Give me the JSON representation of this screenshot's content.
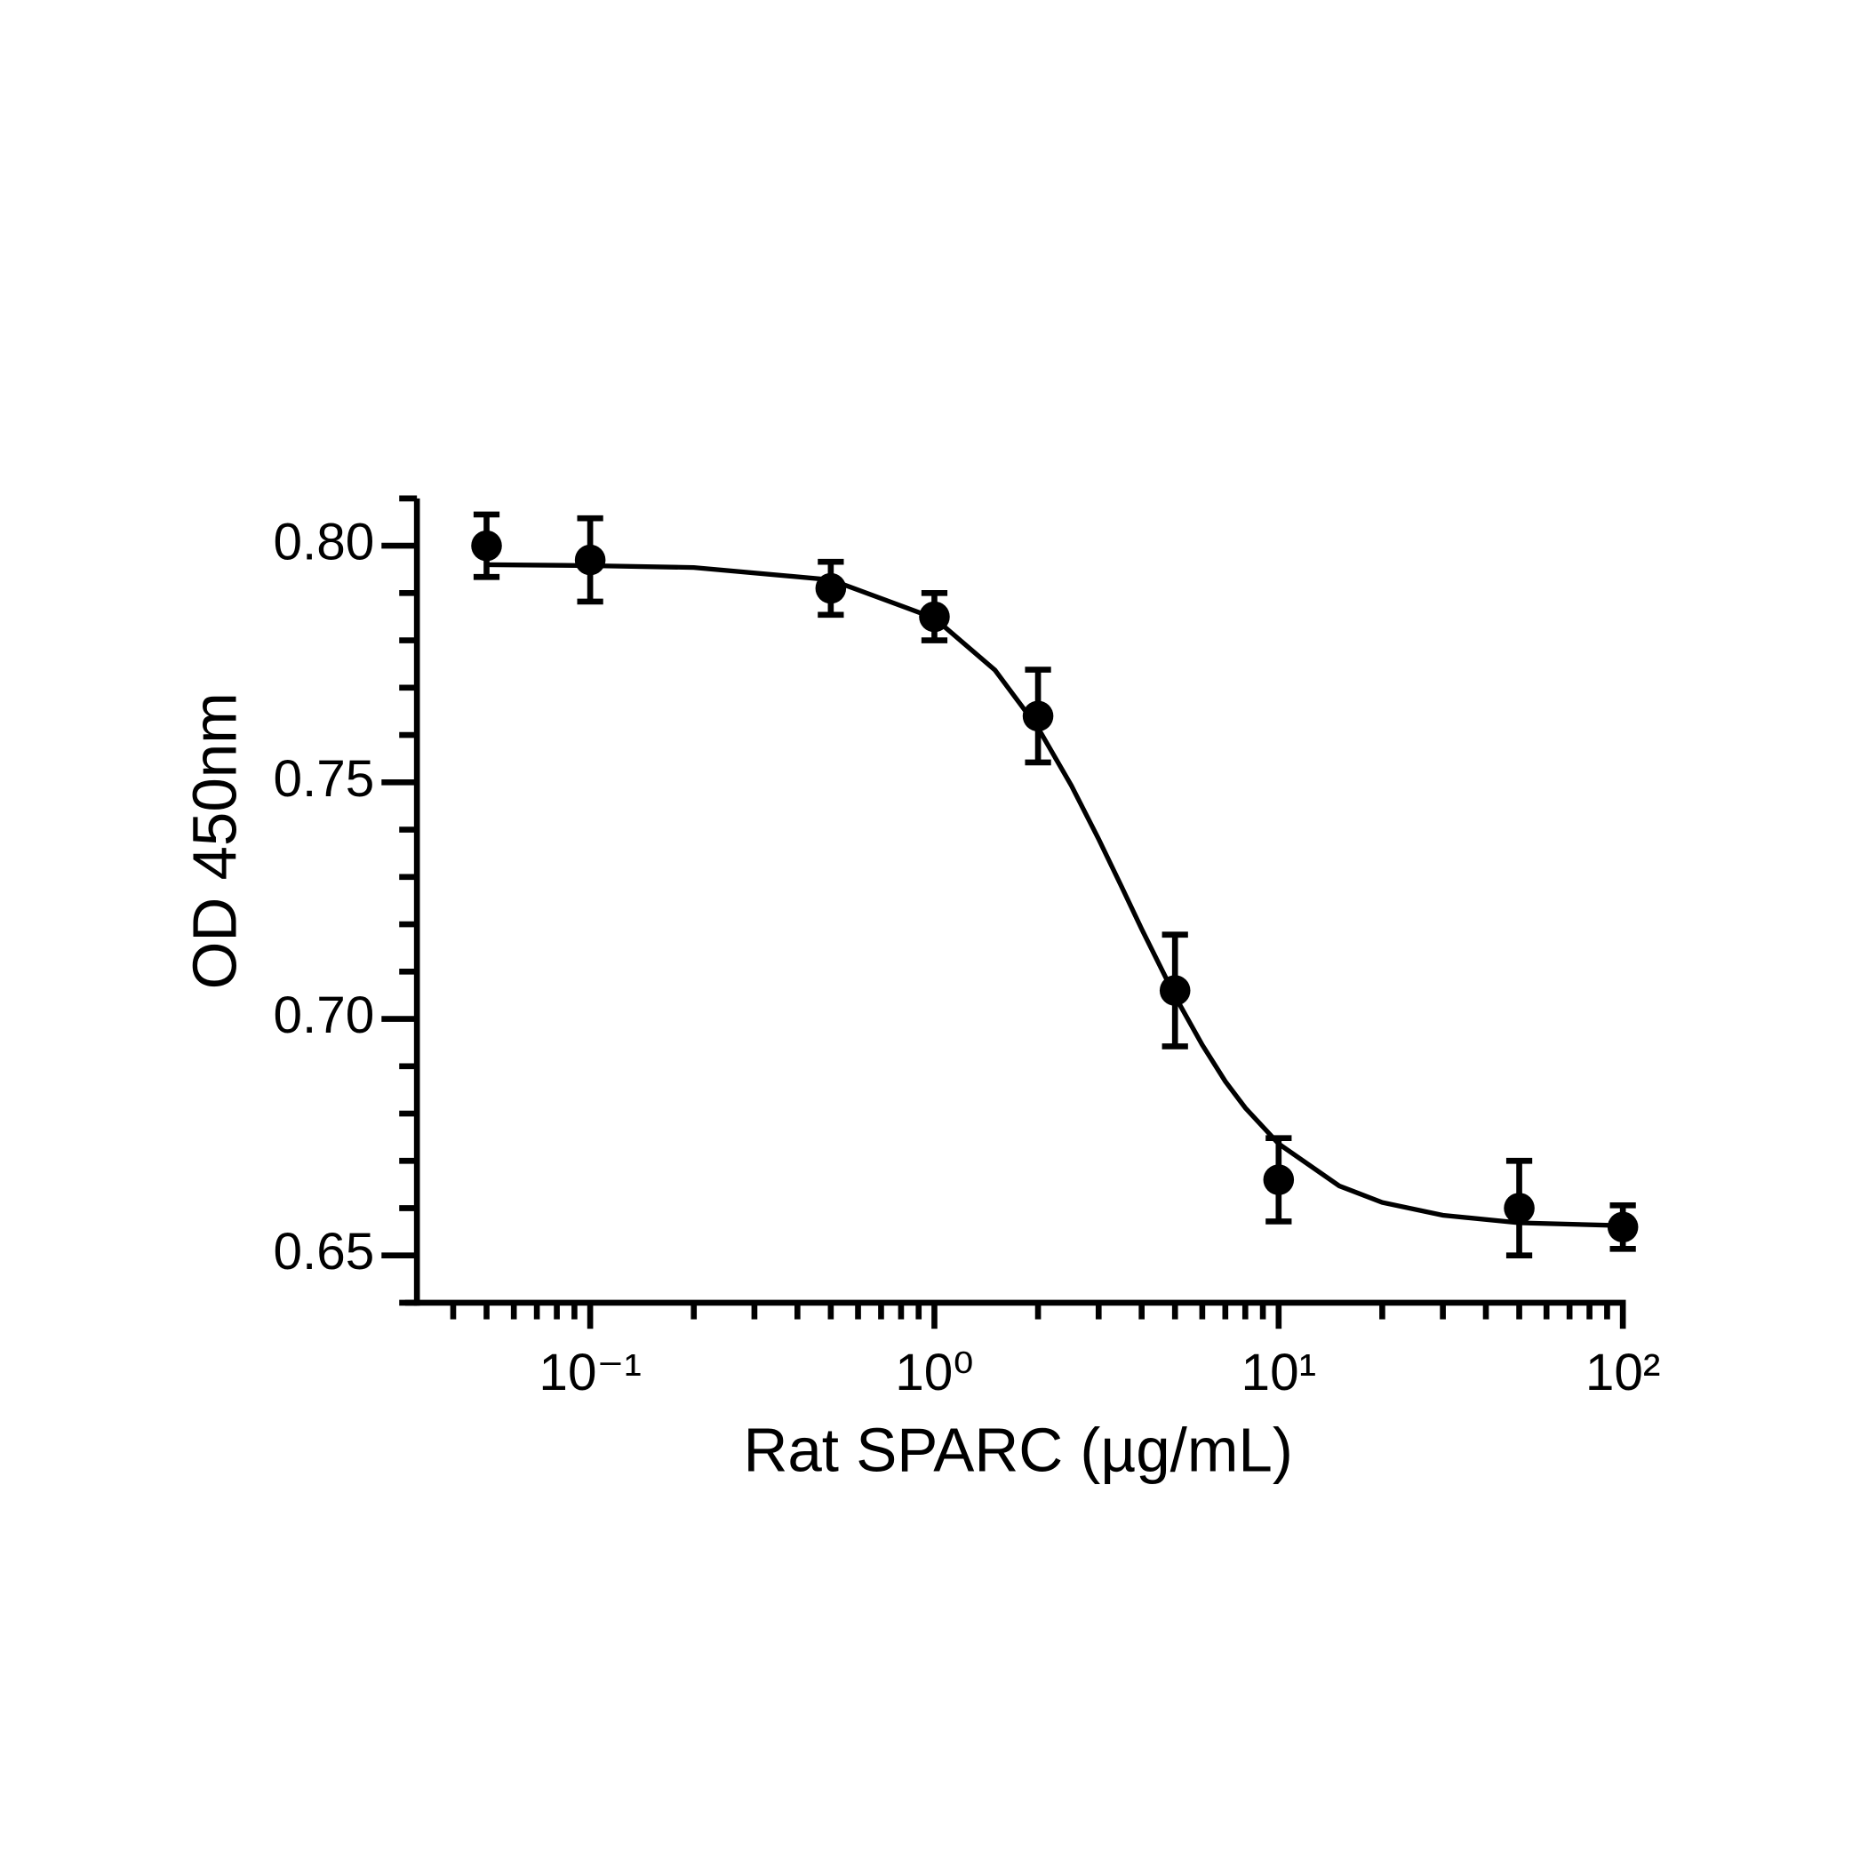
{
  "chart_data": {
    "type": "scatter",
    "x_label": "Rat SPARC (µg/mL)",
    "y_label": "OD 450nm",
    "x": [
      0.05,
      0.1,
      0.5,
      1,
      2,
      5,
      10,
      50,
      100
    ],
    "values": [
      0.8,
      0.797,
      0.791,
      0.785,
      0.764,
      0.706,
      0.666,
      0.66,
      0.656
    ],
    "errors": [
      0.0066,
      0.0088,
      0.0056,
      0.005,
      0.0098,
      0.0118,
      0.0088,
      0.01,
      0.0046
    ],
    "color": "#000000",
    "fit": {
      "x": [
        0.05,
        0.1,
        0.2,
        0.5,
        1,
        1.5,
        2,
        2.5,
        3,
        3.5,
        4,
        5,
        6,
        7,
        8,
        10,
        15,
        20,
        30,
        50,
        100
      ],
      "y": [
        0.796,
        0.7958,
        0.7954,
        0.7928,
        0.7847,
        0.7737,
        0.7615,
        0.7493,
        0.738,
        0.7279,
        0.719,
        0.7048,
        0.6945,
        0.6868,
        0.6812,
        0.6736,
        0.6647,
        0.6612,
        0.6585,
        0.6569,
        0.6563
      ]
    },
    "xscale": "log",
    "xlim": [
      0.029,
      100
    ],
    "xticks": [
      {
        "value": 0.1,
        "label": "10⁻¹"
      },
      {
        "value": 1,
        "label": "10⁰"
      },
      {
        "value": 10,
        "label": "10¹"
      },
      {
        "value": 100,
        "label": "10²"
      }
    ],
    "xminorticks": [
      0.04,
      0.05,
      0.06,
      0.07,
      0.08,
      0.09,
      0.2,
      0.3,
      0.4,
      0.5,
      0.6,
      0.7,
      0.8,
      0.9,
      2,
      3,
      4,
      5,
      6,
      7,
      8,
      9,
      20,
      30,
      40,
      50,
      60,
      70,
      80,
      90
    ],
    "ylim": [
      0.64,
      0.81
    ],
    "yticks": [
      {
        "value": 0.65,
        "label": "0.65"
      },
      {
        "value": 0.7,
        "label": "0.70"
      },
      {
        "value": 0.75,
        "label": "0.75"
      },
      {
        "value": 0.8,
        "label": "0.80"
      }
    ],
    "yminorticks": [
      0.64,
      0.66,
      0.67,
      0.68,
      0.69,
      0.71,
      0.72,
      0.73,
      0.74,
      0.76,
      0.77,
      0.78,
      0.79,
      0.81
    ]
  }
}
